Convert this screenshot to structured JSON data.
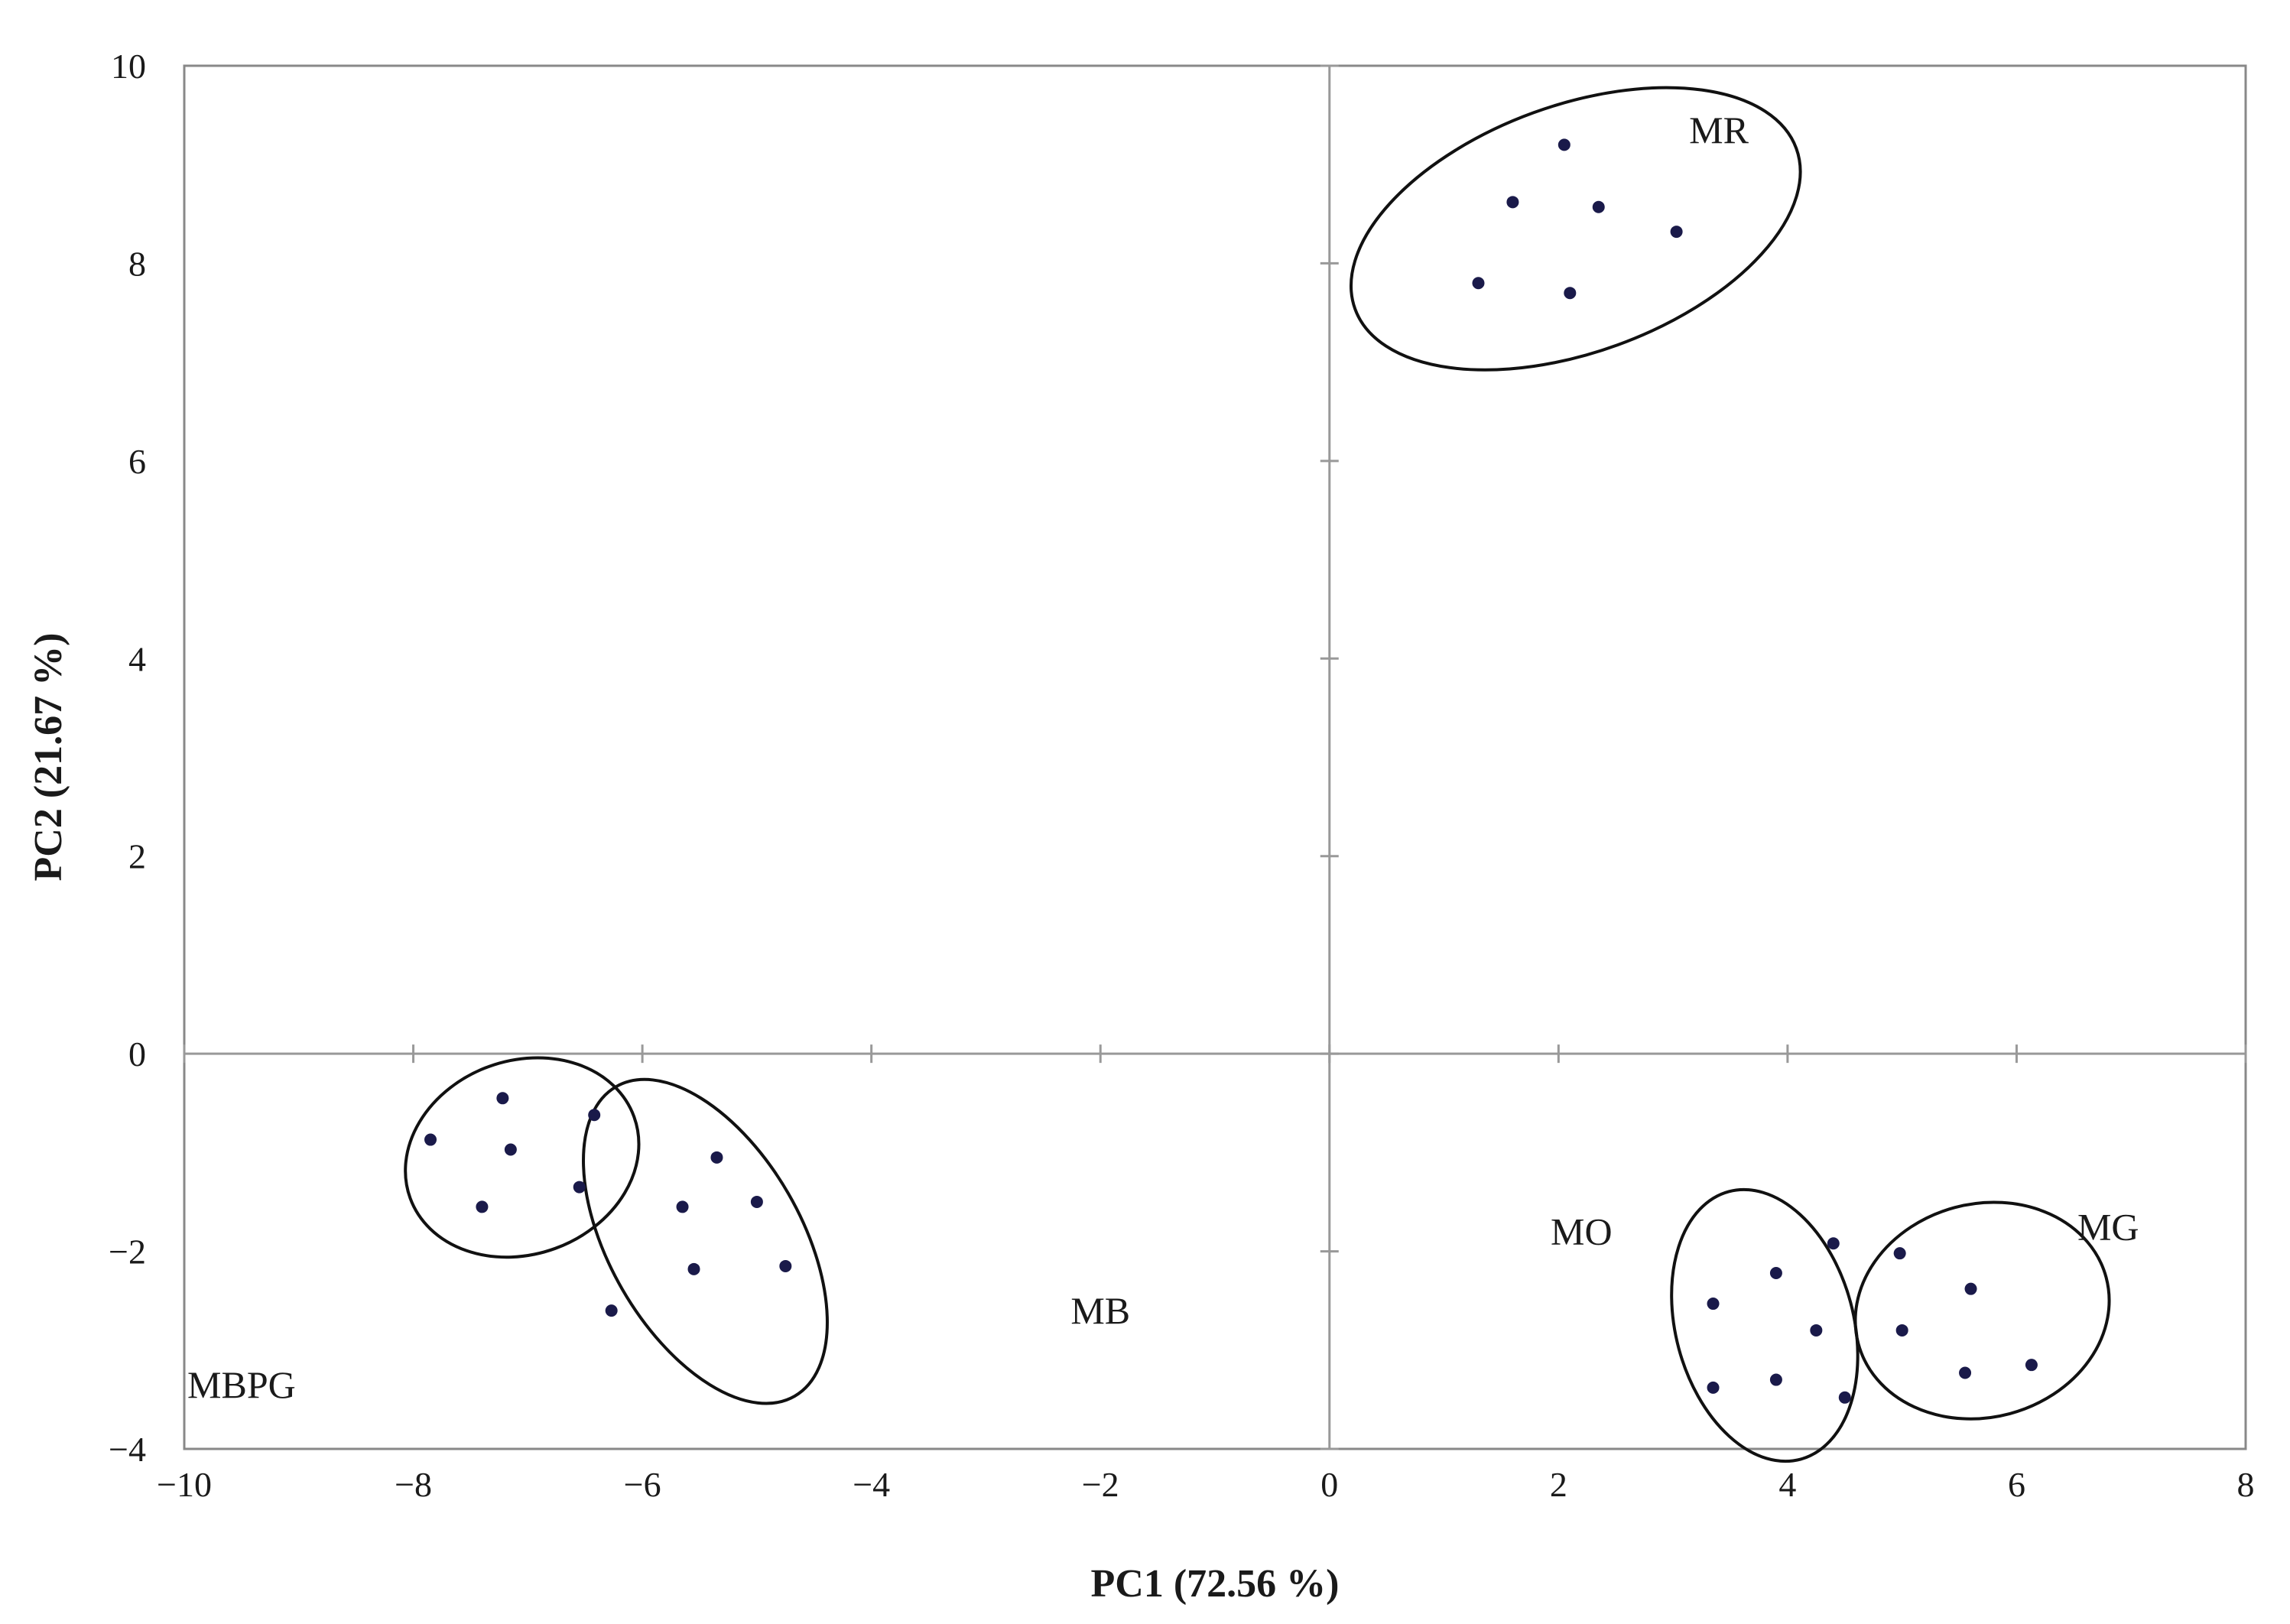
{
  "chart_data": {
    "type": "scatter",
    "title": "",
    "xlabel": "PC1 (72.56 %)",
    "ylabel": "PC2 (21.67 %)",
    "xlim": [
      -10,
      8
    ],
    "ylim": [
      -4,
      10
    ],
    "xticks": [
      -10,
      -8,
      -6,
      -4,
      -2,
      0,
      2,
      4,
      6,
      8
    ],
    "yticks": [
      -4,
      -2,
      0,
      2,
      4,
      6,
      8,
      10
    ],
    "xtick_labels": [
      "−10",
      "−8",
      "−6",
      "−4",
      "−2",
      "0",
      "2",
      "4",
      "6",
      "8"
    ],
    "ytick_labels": [
      "−4",
      "−2",
      "0",
      "2",
      "4",
      "6",
      "8",
      "10"
    ],
    "grid": false,
    "legend": "none",
    "marker_color": "#1a1a4a",
    "groups": [
      {
        "name": "MR",
        "points": [
          [
            2.05,
            9.2
          ],
          [
            1.6,
            8.62
          ],
          [
            2.35,
            8.57
          ],
          [
            3.03,
            8.32
          ],
          [
            1.3,
            7.8
          ],
          [
            2.1,
            7.7
          ]
        ],
        "ellipse": {
          "cx": 2.15,
          "cy": 8.35,
          "rx": 2.05,
          "ry": 1.25,
          "angle": 20
        }
      },
      {
        "name": "MBPG",
        "points": [
          [
            -7.22,
            -0.45
          ],
          [
            -6.42,
            -0.62
          ],
          [
            -7.85,
            -0.87
          ],
          [
            -7.15,
            -0.97
          ],
          [
            -6.55,
            -1.35
          ],
          [
            -7.4,
            -1.55
          ]
        ],
        "ellipse": {
          "cx": -7.05,
          "cy": -1.05,
          "rx": 1.04,
          "ry": 0.98,
          "angle": 20
        }
      },
      {
        "name": "MB",
        "points": [
          [
            -5.35,
            -1.05
          ],
          [
            -5.65,
            -1.55
          ],
          [
            -5.0,
            -1.5
          ],
          [
            -5.55,
            -2.18
          ],
          [
            -4.75,
            -2.15
          ],
          [
            -6.27,
            -2.6
          ]
        ],
        "ellipse": {
          "cx": -5.45,
          "cy": -1.9,
          "rx": 1.56,
          "ry": 0.97,
          "angle": -60
        }
      },
      {
        "name": "MO",
        "points": [
          [
            4.4,
            -1.92
          ],
          [
            3.9,
            -2.22
          ],
          [
            3.35,
            -2.53
          ],
          [
            4.25,
            -2.8
          ],
          [
            3.9,
            -3.3
          ],
          [
            3.35,
            -3.38
          ],
          [
            4.5,
            -3.48
          ]
        ],
        "ellipse": {
          "cx": 3.8,
          "cy": -2.75,
          "rx": 1.21,
          "ry": 0.9,
          "angle": -75
        }
      },
      {
        "name": "MG",
        "points": [
          [
            4.98,
            -2.02
          ],
          [
            5.6,
            -2.38
          ],
          [
            5.0,
            -2.8
          ],
          [
            5.55,
            -3.23
          ],
          [
            6.13,
            -3.15
          ]
        ],
        "ellipse": {
          "cx": 5.7,
          "cy": -2.6,
          "rx": 1.12,
          "ry": 1.08,
          "angle": 15
        }
      }
    ],
    "annotations": [
      {
        "text": "MR",
        "x": 3.4,
        "y": 9.35
      },
      {
        "text": "MBPG",
        "x": -9.5,
        "y": -3.35
      },
      {
        "text": "MB",
        "x": -2.0,
        "y": -2.6
      },
      {
        "text": "MO",
        "x": 2.2,
        "y": -1.8
      },
      {
        "text": "MG",
        "x": 6.8,
        "y": -1.75
      }
    ]
  }
}
